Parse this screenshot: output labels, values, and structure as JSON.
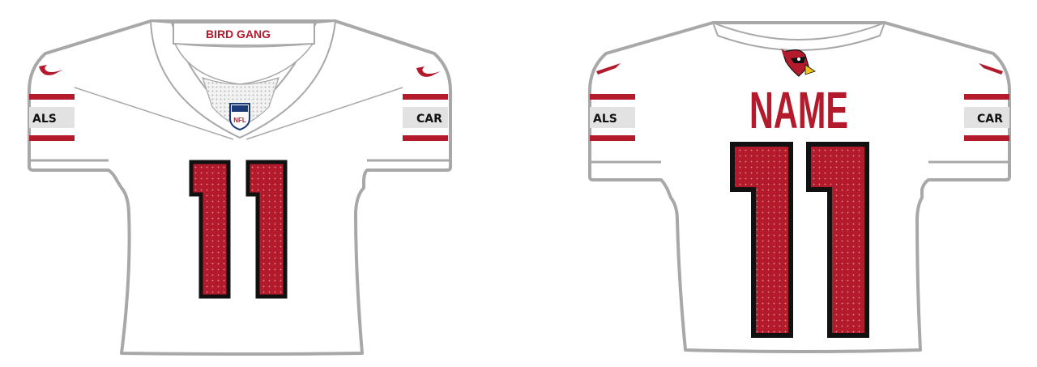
{
  "front": {
    "collar_text": "BIRD GANG",
    "shield_text": "NFL",
    "number": "11",
    "left_sleeve_text": "ALS",
    "right_sleeve_text": "CAR"
  },
  "back": {
    "name": "NAME",
    "number": "11",
    "left_sleeve_text": "ALS",
    "right_sleeve_text": "CAR"
  },
  "colors": {
    "jersey_white": "#ffffff",
    "outline_gray": "#a8a8a8",
    "cardinal_red": "#b31b2c",
    "number_black": "#111111",
    "sleeve_band_gray": "#e2e2e2",
    "beak_yellow": "#f2c21a"
  },
  "icons": [
    "nike-swoosh-icon",
    "nfl-shield-icon",
    "cardinal-head-logo-icon"
  ]
}
